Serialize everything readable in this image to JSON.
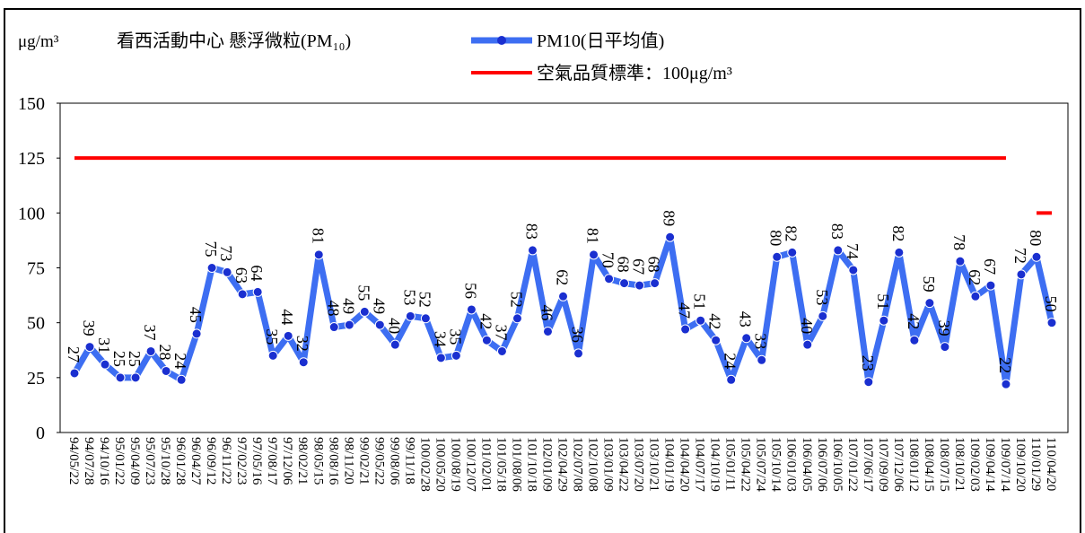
{
  "chart_data": {
    "type": "line",
    "subtitle": "看西活動中心 懸浮微粒(PM₁₀)",
    "y_label": "μg/m³",
    "categories": [
      "94/05/22",
      "94/07/28",
      "94/10/16",
      "95/01/22",
      "95/04/09",
      "95/07/23",
      "95/10/28",
      "96/01/28",
      "96/04/27",
      "96/09/12",
      "96/11/22",
      "97/02/23",
      "97/05/16",
      "97/08/17",
      "97/12/06",
      "98/02/21",
      "98/05/15",
      "98/08/16",
      "98/11/20",
      "99/02/21",
      "99/05/22",
      "99/08/06",
      "99/11/18",
      "100/02/28",
      "100/05/20",
      "100/08/19",
      "100/12/07",
      "101/02/01",
      "101/05/18",
      "101/08/06",
      "101/10/18",
      "102/01/09",
      "102/04/29",
      "102/07/08",
      "102/10/08",
      "103/01/09",
      "103/04/22",
      "103/07/20",
      "103/10/21",
      "104/01/19",
      "104/04/20",
      "104/07/17",
      "104/10/19",
      "105/01/11",
      "105/04/22",
      "105/07/24",
      "105/10/14",
      "106/01/03",
      "106/04/05",
      "106/07/06",
      "106/10/05",
      "107/01/22",
      "107/06/17",
      "107/09/09",
      "107/12/06",
      "108/01/12",
      "108/04/15",
      "108/07/15",
      "108/10/21",
      "109/02/03",
      "109/04/14",
      "109/07/14",
      "109/10/20",
      "110/01/29",
      "110/04/20"
    ],
    "series": [
      {
        "name": "PM10(日平均值)",
        "color": "#3d6ef2",
        "marker_color": "#1a2fd0",
        "values": [
          27,
          39,
          31,
          25,
          25,
          37,
          28,
          24,
          45,
          75,
          73,
          63,
          64,
          35,
          44,
          32,
          81,
          48,
          49,
          55,
          49,
          40,
          53,
          52,
          34,
          35,
          56,
          42,
          37,
          52,
          83,
          46,
          62,
          36,
          81,
          70,
          68,
          67,
          68,
          89,
          47,
          51,
          42,
          24,
          43,
          33,
          80,
          82,
          40,
          53,
          83,
          74,
          23,
          51,
          82,
          42,
          59,
          39,
          78,
          62,
          67,
          22,
          72,
          80,
          50
        ]
      },
      {
        "name": "空氣品質標準：100μg/m³",
        "color": "#ff0000",
        "values": [
          125,
          125,
          125,
          125,
          125,
          125,
          125,
          125,
          125,
          125,
          125,
          125,
          125,
          125,
          125,
          125,
          125,
          125,
          125,
          125,
          125,
          125,
          125,
          125,
          125,
          125,
          125,
          125,
          125,
          125,
          125,
          125,
          125,
          125,
          125,
          125,
          125,
          125,
          125,
          125,
          125,
          125,
          125,
          125,
          125,
          125,
          125,
          125,
          125,
          125,
          125,
          125,
          125,
          125,
          125,
          125,
          125,
          125,
          125,
          125,
          125,
          125,
          null,
          100,
          100
        ]
      }
    ],
    "ylim": [
      0,
      150
    ],
    "yticks": [
      0,
      25,
      50,
      75,
      100,
      125,
      150
    ]
  }
}
